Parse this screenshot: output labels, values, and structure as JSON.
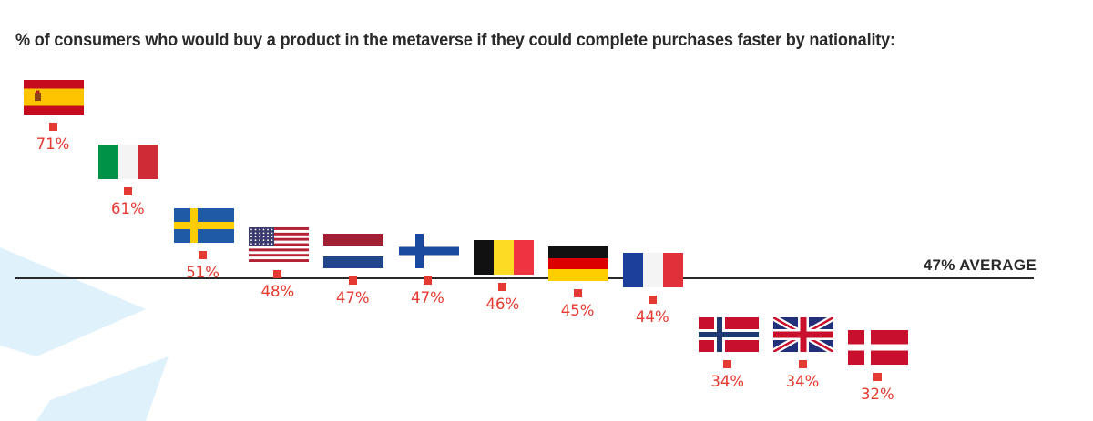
{
  "chart_data": {
    "type": "scatter",
    "title": "% of consumers who would buy a product in the metaverse if they could complete purchases faster by nationality:",
    "categories": [
      "Spain",
      "Italy",
      "Sweden",
      "United States",
      "Netherlands",
      "Finland",
      "Belgium",
      "Germany",
      "France",
      "Norway",
      "United Kingdom",
      "Denmark"
    ],
    "flags": [
      "spain-flag-icon",
      "italy-flag-icon",
      "sweden-flag-icon",
      "usa-flag-icon",
      "netherlands-flag-icon",
      "finland-flag-icon",
      "belgium-flag-icon",
      "germany-flag-icon",
      "france-flag-icon",
      "norway-flag-icon",
      "uk-flag-icon",
      "denmark-flag-icon"
    ],
    "values": [
      71,
      61,
      51,
      48,
      47,
      47,
      46,
      45,
      44,
      34,
      34,
      32
    ],
    "labels": [
      "71%",
      "61%",
      "51%",
      "48%",
      "47%",
      "47%",
      "46%",
      "45%",
      "44%",
      "34%",
      "34%",
      "32%"
    ],
    "average": 47,
    "average_label": "47% AVERAGE",
    "marker_color": "#e53a32",
    "grid": false
  }
}
